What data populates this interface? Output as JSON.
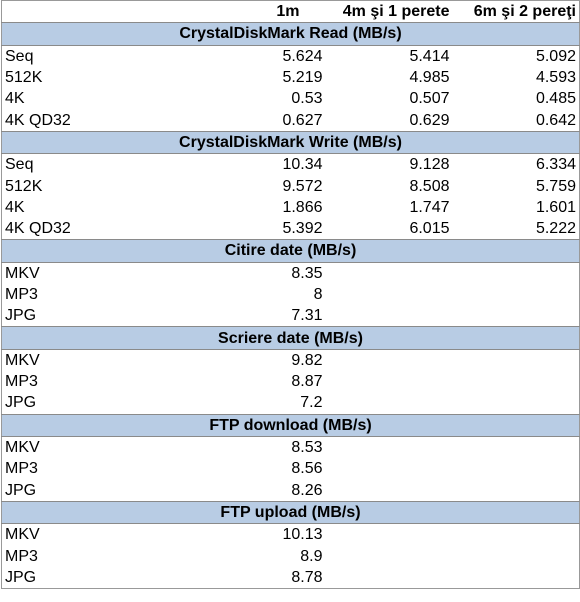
{
  "header": {
    "columns": [
      "1m",
      "4m şi 1 perete",
      "6m şi 2 pereţi"
    ]
  },
  "sections": [
    {
      "title": "CrystalDiskMark Read (MB/s)",
      "rows": [
        {
          "label": "Seq",
          "values": [
            5.624,
            5.414,
            5.092
          ]
        },
        {
          "label": "512K",
          "values": [
            5.219,
            4.985,
            4.593
          ]
        },
        {
          "label": "4K",
          "values": [
            0.53,
            0.507,
            0.485
          ]
        },
        {
          "label": "4K QD32",
          "values": [
            0.627,
            0.629,
            0.642
          ]
        }
      ]
    },
    {
      "title": "CrystalDiskMark Write (MB/s)",
      "rows": [
        {
          "label": "Seq",
          "values": [
            10.34,
            9.128,
            6.334
          ]
        },
        {
          "label": "512K",
          "values": [
            9.572,
            8.508,
            5.759
          ]
        },
        {
          "label": "4K",
          "values": [
            1.866,
            1.747,
            1.601
          ]
        },
        {
          "label": "4K QD32",
          "values": [
            5.392,
            6.015,
            5.222
          ]
        }
      ]
    },
    {
      "title": "Citire date (MB/s)",
      "rows": [
        {
          "label": "MKV",
          "values": [
            8.35
          ]
        },
        {
          "label": "MP3",
          "values": [
            8
          ]
        },
        {
          "label": "JPG",
          "values": [
            7.31
          ]
        }
      ]
    },
    {
      "title": "Scriere date (MB/s)",
      "rows": [
        {
          "label": "MKV",
          "values": [
            9.82
          ]
        },
        {
          "label": "MP3",
          "values": [
            8.87
          ]
        },
        {
          "label": "JPG",
          "values": [
            7.2
          ]
        }
      ]
    },
    {
      "title": "FTP download (MB/s)",
      "rows": [
        {
          "label": "MKV",
          "values": [
            8.53
          ]
        },
        {
          "label": "MP3",
          "values": [
            8.56
          ]
        },
        {
          "label": "JPG",
          "values": [
            8.26
          ]
        }
      ]
    },
    {
      "title": "FTP upload (MB/s)",
      "rows": [
        {
          "label": "MKV",
          "values": [
            10.13
          ]
        },
        {
          "label": "MP3",
          "values": [
            8.9
          ]
        },
        {
          "label": "JPG",
          "values": [
            8.78
          ]
        }
      ]
    }
  ]
}
